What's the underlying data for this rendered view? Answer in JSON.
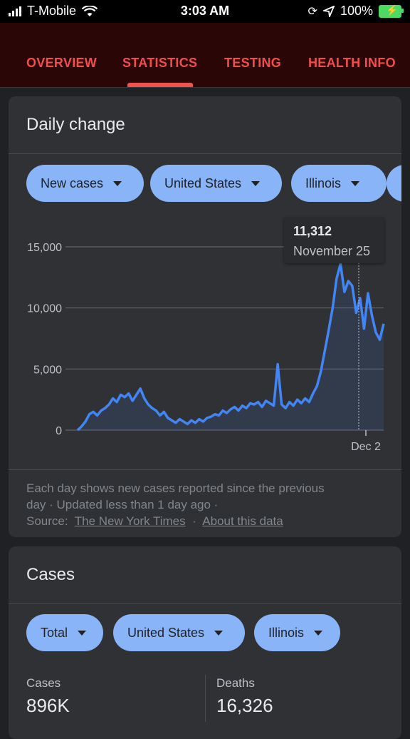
{
  "status_bar": {
    "carrier": "T-Mobile",
    "time": "3:03 AM",
    "battery": "100%",
    "icons": [
      "signal-icon",
      "wifi-icon",
      "rotation-lock-icon",
      "location-icon",
      "battery-charging-icon"
    ]
  },
  "tabs": [
    {
      "label": "OVERVIEW"
    },
    {
      "label": "STATISTICS",
      "active": true
    },
    {
      "label": "TESTING"
    },
    {
      "label": "HEALTH INFO"
    }
  ],
  "daily_change": {
    "title": "Daily change",
    "filters": [
      {
        "label": "New cases"
      },
      {
        "label": "United States"
      },
      {
        "label": "Illinois"
      }
    ],
    "tooltip": {
      "value": "11,312",
      "date": "November 25"
    },
    "note": {
      "line1": "Each day shows new cases reported since the previous",
      "line2": "day · Updated less than 1 day ago ·",
      "source_label": "Source:",
      "source_link": "The New York Times",
      "separator": "·",
      "about_link": "About this data"
    }
  },
  "chart_data": {
    "type": "line",
    "title": "",
    "xlabel": "",
    "ylabel": "",
    "ylim": [
      0,
      15000
    ],
    "y_ticks": [
      "0",
      "5,000",
      "10,000",
      "15,000"
    ],
    "x_tick": "Dec 2",
    "series": [
      {
        "values": [
          0,
          300,
          700,
          1300,
          1500,
          1200,
          1600,
          1800,
          2100,
          2600,
          2300,
          2900,
          2700,
          3000,
          2400,
          2900,
          3400,
          2600,
          2100,
          1800,
          1600,
          1200,
          1500,
          1000,
          800,
          600,
          900,
          700,
          500,
          800,
          600,
          900,
          700,
          1000,
          1100,
          1300,
          1200,
          1600,
          1400,
          1700,
          1900,
          1600,
          2000,
          1800,
          2200,
          2100,
          2300,
          1900,
          2400,
          2200,
          2000,
          5400,
          2100,
          1800,
          2300,
          2000,
          2500,
          2200,
          2600,
          2300,
          3000,
          3600,
          4800,
          6500,
          8200,
          10000,
          12400,
          13600,
          11312,
          12200,
          11800,
          9600,
          10800,
          8300,
          11200,
          9400,
          8000,
          7400,
          8700
        ]
      }
    ],
    "line_color": "#4285f4"
  },
  "cases": {
    "title": "Cases",
    "filters": [
      {
        "label": "Total"
      },
      {
        "label": "United States"
      },
      {
        "label": "Illinois"
      }
    ],
    "stats": [
      {
        "label": "Cases",
        "value": "896K"
      },
      {
        "label": "Deaths",
        "value": "16,326"
      }
    ]
  }
}
